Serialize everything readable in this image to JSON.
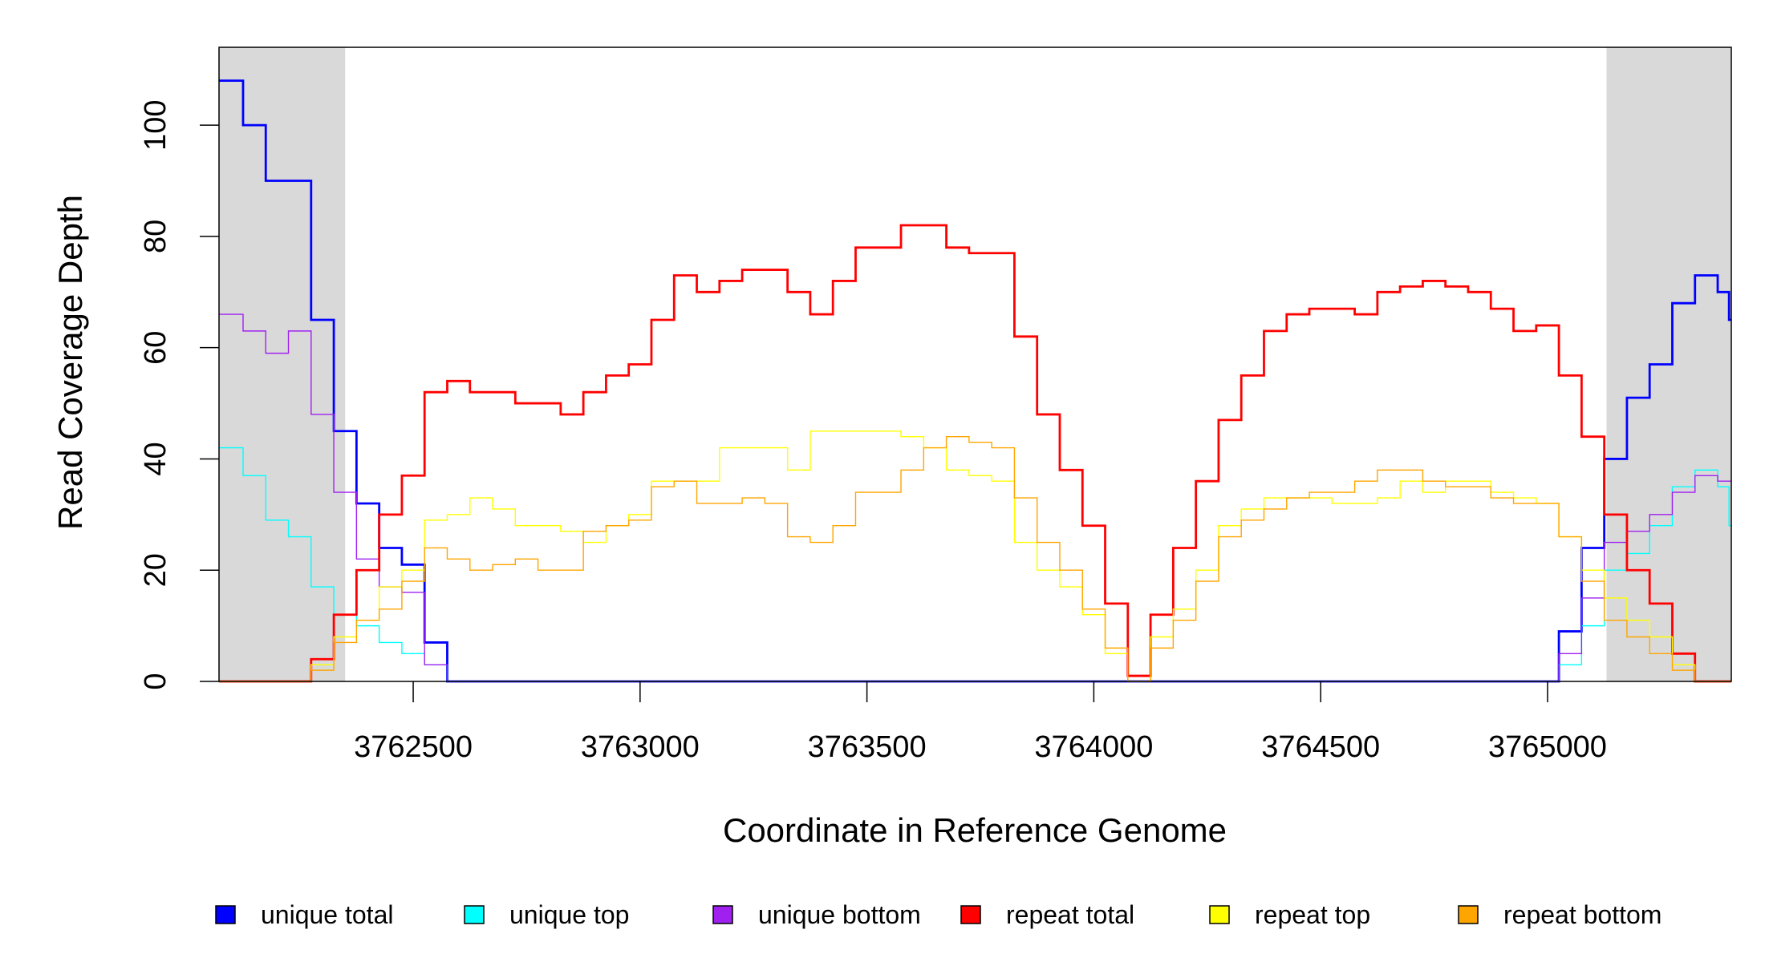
{
  "chart_data": {
    "type": "line",
    "step": true,
    "title": "",
    "xlabel": "Coordinate in Reference Genome",
    "ylabel": "Read Coverage Depth",
    "xlim": [
      3762072,
      3765405
    ],
    "ylim": [
      0,
      114
    ],
    "xticks": [
      3762500,
      3763000,
      3763500,
      3764000,
      3764500,
      3765000
    ],
    "xtick_labels": [
      "3762500",
      "3763000",
      "3763500",
      "3764000",
      "3764500",
      "3765000"
    ],
    "yticks": [
      0,
      20,
      40,
      60,
      80,
      100
    ],
    "ytick_labels": [
      "0",
      "20",
      "40",
      "60",
      "80",
      "100"
    ],
    "shaded_regions": [
      [
        3762072,
        3762350
      ],
      [
        3765130,
        3765405
      ]
    ],
    "shade_color": "#d9d9d9",
    "grid": false,
    "legend_placement": "bottom",
    "x": [
      3762075,
      3762125,
      3762175,
      3762225,
      3762275,
      3762325,
      3762375,
      3762425,
      3762475,
      3762525,
      3762575,
      3762625,
      3762675,
      3762725,
      3762775,
      3762825,
      3762875,
      3762925,
      3762975,
      3763025,
      3763075,
      3763125,
      3763175,
      3763225,
      3763275,
      3763325,
      3763375,
      3763425,
      3763475,
      3763525,
      3763575,
      3763625,
      3763675,
      3763725,
      3763775,
      3763825,
      3763875,
      3763925,
      3763975,
      3764025,
      3764075,
      3764125,
      3764175,
      3764225,
      3764275,
      3764325,
      3764375,
      3764425,
      3764475,
      3764525,
      3764575,
      3764625,
      3764675,
      3764725,
      3764775,
      3764825,
      3764875,
      3764925,
      3764975,
      3765025,
      3765075,
      3765125,
      3765175,
      3765225,
      3765275,
      3765325,
      3765375,
      3765400
    ],
    "series": [
      {
        "name": "unique total",
        "color": "#0000ff",
        "width": 2.8,
        "values": [
          108,
          100,
          90,
          90,
          65,
          45,
          32,
          24,
          21,
          7,
          0,
          0,
          0,
          0,
          0,
          0,
          0,
          0,
          0,
          0,
          0,
          0,
          0,
          0,
          0,
          0,
          0,
          0,
          0,
          0,
          0,
          0,
          0,
          0,
          0,
          0,
          0,
          0,
          0,
          0,
          0,
          0,
          0,
          0,
          0,
          0,
          0,
          0,
          0,
          0,
          0,
          0,
          0,
          0,
          0,
          0,
          0,
          0,
          0,
          9,
          24,
          40,
          51,
          57,
          68,
          73,
          70,
          65
        ]
      },
      {
        "name": "unique top",
        "color": "#00ffff",
        "width": 1.4,
        "values": [
          42,
          37,
          29,
          26,
          17,
          12,
          10,
          7,
          5,
          3,
          0,
          0,
          0,
          0,
          0,
          0,
          0,
          0,
          0,
          0,
          0,
          0,
          0,
          0,
          0,
          0,
          0,
          0,
          0,
          0,
          0,
          0,
          0,
          0,
          0,
          0,
          0,
          0,
          0,
          0,
          0,
          0,
          0,
          0,
          0,
          0,
          0,
          0,
          0,
          0,
          0,
          0,
          0,
          0,
          0,
          0,
          0,
          0,
          0,
          3,
          10,
          20,
          23,
          28,
          35,
          38,
          35,
          28
        ]
      },
      {
        "name": "unique bottom",
        "color": "#a020f0",
        "width": 1.4,
        "values": [
          66,
          63,
          59,
          63,
          48,
          34,
          22,
          17,
          16,
          3,
          0,
          0,
          0,
          0,
          0,
          0,
          0,
          0,
          0,
          0,
          0,
          0,
          0,
          0,
          0,
          0,
          0,
          0,
          0,
          0,
          0,
          0,
          0,
          0,
          0,
          0,
          0,
          0,
          0,
          0,
          0,
          0,
          0,
          0,
          0,
          0,
          0,
          0,
          0,
          0,
          0,
          0,
          0,
          0,
          0,
          0,
          0,
          0,
          0,
          5,
          15,
          25,
          27,
          30,
          34,
          37,
          36,
          36
        ]
      },
      {
        "name": "repeat total",
        "color": "#ff0000",
        "width": 2.8,
        "values": [
          0,
          0,
          0,
          0,
          4,
          12,
          20,
          30,
          37,
          52,
          54,
          52,
          52,
          50,
          50,
          48,
          52,
          55,
          57,
          65,
          73,
          70,
          72,
          74,
          74,
          70,
          66,
          72,
          78,
          78,
          82,
          82,
          78,
          77,
          77,
          62,
          48,
          38,
          28,
          14,
          1,
          12,
          24,
          36,
          47,
          55,
          63,
          66,
          67,
          67,
          66,
          70,
          71,
          72,
          71,
          70,
          67,
          63,
          64,
          55,
          44,
          30,
          20,
          14,
          5,
          0,
          0,
          0
        ]
      },
      {
        "name": "repeat top",
        "color": "#ffff00",
        "width": 1.4,
        "values": [
          0,
          0,
          0,
          0,
          3,
          8,
          11,
          17,
          20,
          29,
          30,
          33,
          31,
          28,
          28,
          27,
          25,
          28,
          30,
          36,
          36,
          36,
          42,
          42,
          42,
          38,
          45,
          45,
          45,
          45,
          44,
          42,
          38,
          37,
          36,
          25,
          20,
          17,
          12,
          5,
          0,
          8,
          13,
          20,
          28,
          31,
          33,
          33,
          33,
          32,
          32,
          33,
          36,
          34,
          36,
          36,
          34,
          33,
          32,
          26,
          20,
          15,
          11,
          8,
          3,
          0,
          0,
          0
        ]
      },
      {
        "name": "repeat bottom",
        "color": "#ffa500",
        "width": 1.4,
        "values": [
          0,
          0,
          0,
          0,
          2,
          7,
          11,
          13,
          18,
          24,
          22,
          20,
          21,
          22,
          20,
          20,
          27,
          28,
          29,
          35,
          36,
          32,
          32,
          33,
          32,
          26,
          25,
          28,
          34,
          34,
          38,
          42,
          44,
          43,
          42,
          33,
          25,
          20,
          13,
          6,
          0,
          6,
          11,
          18,
          26,
          29,
          31,
          33,
          34,
          34,
          36,
          38,
          38,
          36,
          35,
          35,
          33,
          32,
          32,
          26,
          18,
          11,
          8,
          5,
          2,
          0,
          0,
          0
        ]
      }
    ],
    "legend": [
      "unique total",
      "unique top",
      "unique bottom",
      "repeat total",
      "repeat top",
      "repeat bottom"
    ]
  }
}
